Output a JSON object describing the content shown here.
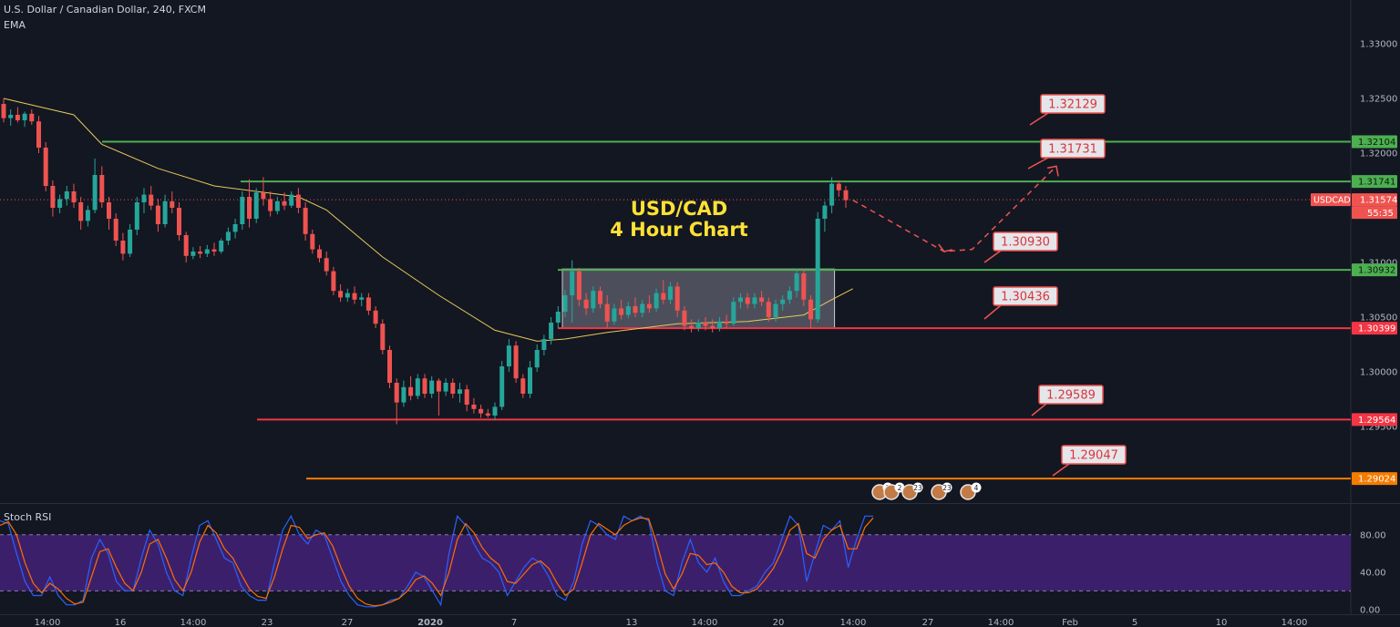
{
  "header": {
    "symbol_line": "U.S. Dollar / Canadian Dollar, 240, FXCM",
    "indicator": "EMA"
  },
  "chart_title": [
    "USD/CAD",
    "4 Hour Chart"
  ],
  "colors": {
    "background": "#131722",
    "up": "#26a69a",
    "down": "#ef5350",
    "ema": "#e8c85a",
    "green_line": "#4caf50",
    "red_line": "#f23645",
    "orange_line": "#f57c00",
    "rsi_k": "#2962ff",
    "rsi_d": "#ff6d00",
    "rsi_band": "#3c1f6b"
  },
  "chart_data": [
    {
      "type": "candlestick",
      "symbol": "USDCAD",
      "timeframe": "240",
      "current_price": "1.31574",
      "countdown": "55:35",
      "ylim": [
        1.288,
        1.334
      ],
      "y_ticks": [
        "1.33000",
        "1.32500",
        "1.32000",
        "1.31000",
        "1.30500",
        "1.30000",
        "1.29500"
      ],
      "x_ticks": [
        "14:00",
        "16",
        "14:00",
        "23",
        "27",
        "2020",
        "7",
        "13",
        "14:00",
        "20",
        "14:00",
        "27",
        "14:00",
        "Feb",
        "5",
        "10",
        "14:00"
      ],
      "candles": [
        [
          1.3245,
          1.325,
          1.3228,
          1.3232
        ],
        [
          1.3232,
          1.324,
          1.3225,
          1.3235
        ],
        [
          1.3235,
          1.3242,
          1.3228,
          1.323
        ],
        [
          1.323,
          1.3238,
          1.3224,
          1.3236
        ],
        [
          1.3236,
          1.324,
          1.3226,
          1.3229
        ],
        [
          1.3229,
          1.3234,
          1.32,
          1.3205
        ],
        [
          1.3205,
          1.321,
          1.3165,
          1.317
        ],
        [
          1.317,
          1.3175,
          1.3142,
          1.315
        ],
        [
          1.315,
          1.3162,
          1.3145,
          1.3158
        ],
        [
          1.3158,
          1.317,
          1.3152,
          1.3165
        ],
        [
          1.3165,
          1.3172,
          1.315,
          1.3155
        ],
        [
          1.3155,
          1.316,
          1.313,
          1.3138
        ],
        [
          1.3138,
          1.3152,
          1.3133,
          1.3148
        ],
        [
          1.3148,
          1.3195,
          1.3145,
          1.318
        ],
        [
          1.318,
          1.3188,
          1.315,
          1.3155
        ],
        [
          1.3155,
          1.316,
          1.313,
          1.314
        ],
        [
          1.314,
          1.3145,
          1.3115,
          1.312
        ],
        [
          1.312,
          1.3127,
          1.3102,
          1.3108
        ],
        [
          1.3108,
          1.3135,
          1.3105,
          1.313
        ],
        [
          1.313,
          1.316,
          1.3125,
          1.3155
        ],
        [
          1.3155,
          1.3168,
          1.3145,
          1.3162
        ],
        [
          1.3162,
          1.317,
          1.3148,
          1.3152
        ],
        [
          1.3152,
          1.3158,
          1.3128,
          1.3135
        ],
        [
          1.3135,
          1.3162,
          1.3132,
          1.3156
        ],
        [
          1.3156,
          1.3165,
          1.3145,
          1.315
        ],
        [
          1.315,
          1.3155,
          1.312,
          1.3125
        ],
        [
          1.3125,
          1.3128,
          1.31,
          1.3106
        ],
        [
          1.3106,
          1.3114,
          1.3103,
          1.311
        ],
        [
          1.311,
          1.3115,
          1.3104,
          1.3108
        ],
        [
          1.3108,
          1.3116,
          1.3105,
          1.3112
        ],
        [
          1.3112,
          1.3118,
          1.3106,
          1.311
        ],
        [
          1.311,
          1.3122,
          1.3108,
          1.312
        ],
        [
          1.312,
          1.3132,
          1.3116,
          1.3128
        ],
        [
          1.3128,
          1.314,
          1.3122,
          1.3135
        ],
        [
          1.3135,
          1.3165,
          1.313,
          1.316
        ],
        [
          1.316,
          1.3176,
          1.3132,
          1.314
        ],
        [
          1.314,
          1.3168,
          1.3136,
          1.3164
        ],
        [
          1.3164,
          1.3178,
          1.3152,
          1.3158
        ],
        [
          1.3158,
          1.3165,
          1.3142,
          1.3147
        ],
        [
          1.3147,
          1.316,
          1.3144,
          1.3156
        ],
        [
          1.3156,
          1.3164,
          1.3148,
          1.3152
        ],
        [
          1.3152,
          1.3165,
          1.315,
          1.3162
        ],
        [
          1.3162,
          1.3168,
          1.3145,
          1.315
        ],
        [
          1.315,
          1.3155,
          1.312,
          1.3126
        ],
        [
          1.3126,
          1.313,
          1.3108,
          1.3112
        ],
        [
          1.3112,
          1.3116,
          1.31,
          1.3104
        ],
        [
          1.3104,
          1.311,
          1.3088,
          1.3092
        ],
        [
          1.3092,
          1.3096,
          1.307,
          1.3074
        ],
        [
          1.3074,
          1.308,
          1.3064,
          1.3068
        ],
        [
          1.3068,
          1.3076,
          1.3064,
          1.3072
        ],
        [
          1.3072,
          1.3078,
          1.3062,
          1.3066
        ],
        [
          1.3066,
          1.3072,
          1.306,
          1.3068
        ],
        [
          1.3068,
          1.3072,
          1.3052,
          1.3056
        ],
        [
          1.3056,
          1.306,
          1.304,
          1.3044
        ],
        [
          1.3044,
          1.3048,
          1.3016,
          1.302
        ],
        [
          1.302,
          1.3024,
          1.2985,
          1.299
        ],
        [
          1.299,
          1.2994,
          1.2952,
          1.2972
        ],
        [
          1.2972,
          1.2992,
          1.2968,
          1.2986
        ],
        [
          1.2986,
          1.2996,
          1.2974,
          1.2978
        ],
        [
          1.2978,
          1.2998,
          1.2975,
          1.2994
        ],
        [
          1.2994,
          1.2998,
          1.2976,
          1.298
        ],
        [
          1.298,
          1.2996,
          1.2976,
          1.2992
        ],
        [
          1.2992,
          1.2994,
          1.296,
          1.2982
        ],
        [
          1.2982,
          1.2994,
          1.2978,
          1.299
        ],
        [
          1.299,
          1.2994,
          1.2976,
          1.298
        ],
        [
          1.298,
          1.299,
          1.2972,
          1.2984
        ],
        [
          1.2984,
          1.2988,
          1.2964,
          1.297
        ],
        [
          1.297,
          1.2976,
          1.2962,
          1.2966
        ],
        [
          1.2966,
          1.297,
          1.2958,
          1.2962
        ],
        [
          1.2962,
          1.2966,
          1.2958,
          1.296
        ],
        [
          1.296,
          1.2972,
          1.2956,
          1.2968
        ],
        [
          1.2968,
          1.301,
          1.2965,
          1.3005
        ],
        [
          1.3005,
          1.303,
          1.3,
          1.3024
        ],
        [
          1.3024,
          1.3028,
          1.299,
          1.2994
        ],
        [
          1.2994,
          1.2998,
          1.2976,
          1.298
        ],
        [
          1.298,
          1.301,
          1.2976,
          1.3004
        ],
        [
          1.3004,
          1.3025,
          1.3,
          1.302
        ],
        [
          1.302,
          1.3034,
          1.3015,
          1.303
        ],
        [
          1.303,
          1.305,
          1.3025,
          1.3045
        ],
        [
          1.3045,
          1.306,
          1.304,
          1.3055
        ],
        [
          1.3055,
          1.3075,
          1.305,
          1.307
        ],
        [
          1.307,
          1.3102,
          1.3045,
          1.3092
        ],
        [
          1.3092,
          1.3095,
          1.306,
          1.3066
        ],
        [
          1.3066,
          1.3072,
          1.3052,
          1.3058
        ],
        [
          1.3058,
          1.3078,
          1.3054,
          1.3074
        ],
        [
          1.3074,
          1.3078,
          1.3058,
          1.3062
        ],
        [
          1.3062,
          1.307,
          1.304,
          1.3046
        ],
        [
          1.3046,
          1.3062,
          1.3043,
          1.3058
        ],
        [
          1.3058,
          1.3066,
          1.3048,
          1.3052
        ],
        [
          1.3052,
          1.3064,
          1.3049,
          1.306
        ],
        [
          1.306,
          1.3068,
          1.305,
          1.3054
        ],
        [
          1.3054,
          1.3066,
          1.305,
          1.3062
        ],
        [
          1.3062,
          1.307,
          1.3054,
          1.3058
        ],
        [
          1.3058,
          1.3076,
          1.3055,
          1.3072
        ],
        [
          1.3072,
          1.3084,
          1.3062,
          1.3066
        ],
        [
          1.3066,
          1.3082,
          1.3062,
          1.3078
        ],
        [
          1.3078,
          1.3082,
          1.305,
          1.3056
        ],
        [
          1.3056,
          1.306,
          1.3038,
          1.3042
        ],
        [
          1.3042,
          1.3048,
          1.3036,
          1.304
        ],
        [
          1.304,
          1.3048,
          1.3037,
          1.3045
        ],
        [
          1.3045,
          1.305,
          1.3038,
          1.3042
        ],
        [
          1.3042,
          1.3048,
          1.3036,
          1.304
        ],
        [
          1.304,
          1.305,
          1.3037,
          1.3046
        ],
        [
          1.3046,
          1.3052,
          1.304,
          1.3044
        ],
        [
          1.3044,
          1.3068,
          1.3042,
          1.3064
        ],
        [
          1.3064,
          1.3072,
          1.3058,
          1.3068
        ],
        [
          1.3068,
          1.3072,
          1.3058,
          1.3062
        ],
        [
          1.3062,
          1.3072,
          1.3058,
          1.3068
        ],
        [
          1.3068,
          1.3074,
          1.306,
          1.3064
        ],
        [
          1.3064,
          1.3068,
          1.3046,
          1.305
        ],
        [
          1.305,
          1.3066,
          1.3046,
          1.3062
        ],
        [
          1.3062,
          1.307,
          1.3056,
          1.3066
        ],
        [
          1.3066,
          1.3078,
          1.3062,
          1.3074
        ],
        [
          1.3074,
          1.3094,
          1.3068,
          1.309
        ],
        [
          1.309,
          1.3094,
          1.306,
          1.3066
        ],
        [
          1.3066,
          1.307,
          1.304,
          1.3048
        ],
        [
          1.3048,
          1.3146,
          1.3045,
          1.314
        ],
        [
          1.314,
          1.3156,
          1.3128,
          1.3152
        ],
        [
          1.3152,
          1.3178,
          1.3145,
          1.3172
        ],
        [
          1.3172,
          1.3175,
          1.316,
          1.3166
        ],
        [
          1.3166,
          1.317,
          1.315,
          1.3157
        ]
      ],
      "ema": [
        [
          0,
          1.325
        ],
        [
          10,
          1.3235
        ],
        [
          14,
          1.3208
        ],
        [
          22,
          1.3186
        ],
        [
          30,
          1.317
        ],
        [
          36,
          1.3165
        ],
        [
          42,
          1.316
        ],
        [
          46,
          1.3148
        ],
        [
          54,
          1.3105
        ],
        [
          62,
          1.307
        ],
        [
          70,
          1.3038
        ],
        [
          76,
          1.3028
        ],
        [
          80,
          1.303
        ],
        [
          86,
          1.3036
        ],
        [
          96,
          1.3044
        ],
        [
          106,
          1.3046
        ],
        [
          114,
          1.3052
        ],
        [
          118,
          1.3066
        ],
        [
          121,
          1.3076
        ]
      ],
      "horizontal_levels": [
        {
          "value": "1.32104",
          "color": "#4caf50"
        },
        {
          "value": "1.31741",
          "color": "#4caf50"
        },
        {
          "value": "1.30932",
          "color": "#4caf50"
        },
        {
          "value": "1.30399",
          "color": "#f23645"
        },
        {
          "value": "1.29564",
          "color": "#f23645"
        },
        {
          "value": "1.29024",
          "color": "#f57c00"
        }
      ],
      "callouts": [
        "1.32129",
        "1.31731",
        "1.30930",
        "1.30436",
        "1.29589",
        "1.29047"
      ],
      "consolidation_box": {
        "from": 80,
        "to": 118,
        "top": 1.3094,
        "bottom": 1.304
      },
      "projection_path": [
        [
          121,
          1.3157
        ],
        [
          134,
          1.311
        ],
        [
          138,
          1.3112
        ],
        [
          150,
          1.3188
        ]
      ],
      "event_badges": [
        "3",
        "2",
        "23",
        "23",
        "4"
      ]
    },
    {
      "type": "line",
      "title": "Stoch RSI",
      "ylim": [
        -5,
        110
      ],
      "y_ticks": [
        "80.00",
        "40.00",
        "0.00"
      ],
      "bands": [
        20,
        80
      ],
      "series": [
        {
          "color": "#2962ff",
          "values": [
            95,
            92,
            60,
            30,
            15,
            15,
            35,
            15,
            5,
            5,
            10,
            55,
            75,
            60,
            30,
            20,
            20,
            55,
            85,
            70,
            40,
            20,
            15,
            55,
            90,
            95,
            75,
            55,
            50,
            25,
            15,
            10,
            10,
            50,
            85,
            100,
            80,
            70,
            85,
            80,
            55,
            30,
            15,
            5,
            3,
            3,
            5,
            10,
            12,
            25,
            40,
            35,
            20,
            5,
            60,
            100,
            90,
            70,
            55,
            50,
            40,
            15,
            30,
            45,
            55,
            50,
            35,
            15,
            10,
            30,
            70,
            95,
            90,
            80,
            75,
            100,
            95,
            100,
            95,
            50,
            20,
            15,
            50,
            75,
            50,
            40,
            55,
            30,
            15,
            15,
            20,
            25,
            40,
            50,
            75,
            100,
            90,
            30,
            60,
            90,
            85,
            95,
            45,
            75,
            100,
            100
          ]
        },
        {
          "color": "#ff6d00",
          "values": [
            90,
            94,
            80,
            50,
            28,
            18,
            28,
            22,
            12,
            6,
            8,
            35,
            62,
            65,
            45,
            28,
            20,
            40,
            70,
            75,
            55,
            32,
            20,
            40,
            72,
            90,
            82,
            65,
            55,
            38,
            22,
            14,
            12,
            35,
            65,
            90,
            88,
            76,
            80,
            82,
            68,
            45,
            25,
            12,
            6,
            4,
            5,
            8,
            12,
            20,
            32,
            36,
            28,
            15,
            40,
            75,
            92,
            82,
            66,
            55,
            48,
            30,
            28,
            38,
            48,
            52,
            44,
            28,
            15,
            22,
            50,
            80,
            92,
            86,
            80,
            90,
            95,
            98,
            97,
            70,
            38,
            22,
            38,
            60,
            58,
            48,
            50,
            40,
            25,
            18,
            18,
            22,
            32,
            44,
            62,
            85,
            92,
            60,
            55,
            75,
            85,
            90,
            65,
            65,
            88,
            98
          ]
        }
      ]
    }
  ]
}
